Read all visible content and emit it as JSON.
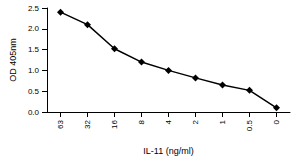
{
  "chart_data": {
    "type": "line",
    "categories": [
      "63",
      "32",
      "16",
      "8",
      "4",
      "2",
      "1",
      "0.5",
      "0"
    ],
    "values": [
      2.4,
      2.1,
      1.52,
      1.2,
      1.0,
      0.82,
      0.65,
      0.52,
      0.1
    ],
    "color": "#000000",
    "marker": "diamond",
    "xlabel": "IL-11 (ng/ml)",
    "ylabel": "OD 405nm",
    "ylim": [
      0,
      2.5
    ],
    "yticks": [
      {
        "value": 0,
        "label": "0.0"
      },
      0.5,
      {
        "value": 1,
        "label": "1.0"
      },
      {
        "value": 1.5,
        "label": "1.5"
      },
      {
        "value": 2,
        "label": "2.0"
      },
      2.5
    ],
    "grid": false
  }
}
